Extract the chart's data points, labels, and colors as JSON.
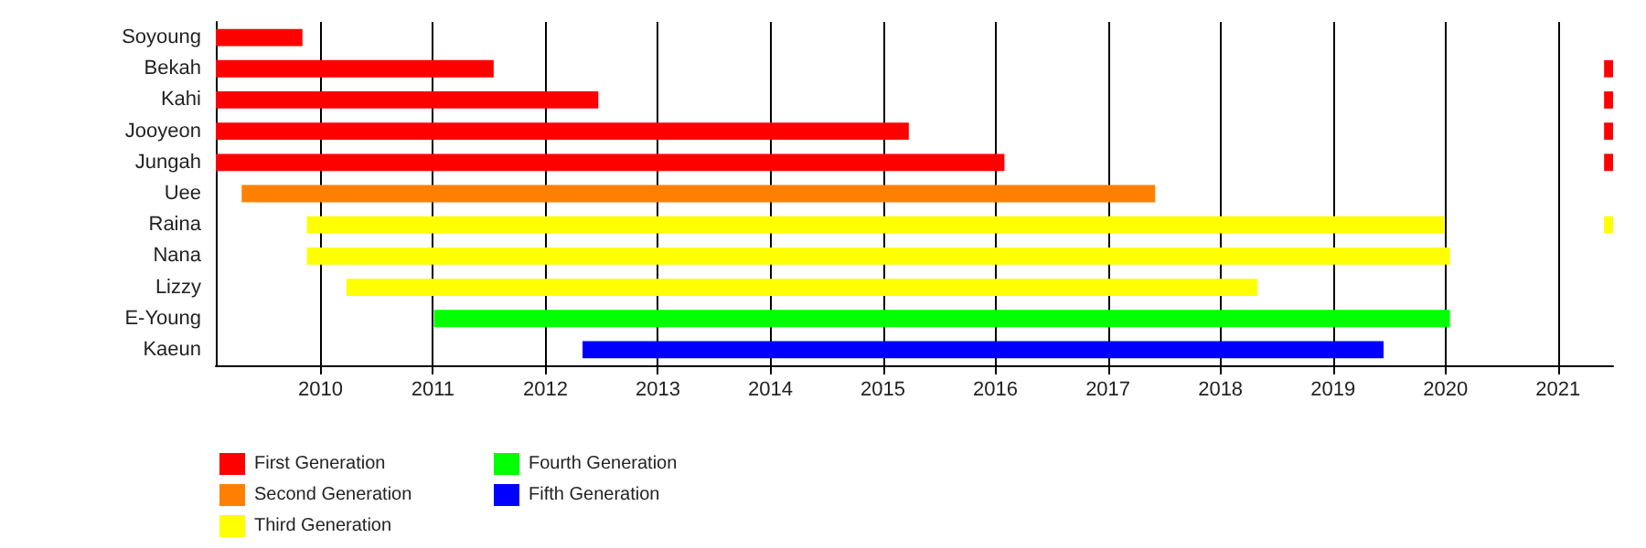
{
  "chart_data": {
    "type": "bar",
    "orientation": "horizontal",
    "categories": [
      "Soyoung",
      "Bekah",
      "Kahi",
      "Jooyeon",
      "Jungah",
      "Uee",
      "Raina",
      "Nana",
      "Lizzy",
      "E-Young",
      "Kaeun"
    ],
    "series": [
      {
        "name": "First Generation",
        "color": "#ff0000",
        "base": [
          2009.07,
          2009.07,
          2009.07,
          2009.07,
          2009.07,
          null,
          null,
          null,
          null,
          null,
          null
        ],
        "values": [
          0.77,
          2.47,
          3.4,
          6.16,
          7.01,
          null,
          null,
          null,
          null,
          null,
          null
        ]
      },
      {
        "name": "Second Generation",
        "color": "#ff8000",
        "base": [
          null,
          null,
          null,
          null,
          null,
          2009.3,
          null,
          null,
          null,
          null,
          null
        ],
        "values": [
          null,
          null,
          null,
          null,
          null,
          8.12,
          null,
          null,
          null,
          null,
          null
        ]
      },
      {
        "name": "Third Generation",
        "color": "#ffff00",
        "base": [
          null,
          null,
          null,
          null,
          null,
          null,
          2009.88,
          2009.88,
          2010.23,
          null,
          null
        ],
        "values": [
          null,
          null,
          null,
          null,
          null,
          null,
          10.11,
          10.16,
          8.1,
          null,
          null
        ]
      },
      {
        "name": "Fourth Generation",
        "color": "#00ff00",
        "base": [
          null,
          null,
          null,
          null,
          null,
          null,
          null,
          null,
          null,
          2011.01,
          null
        ],
        "values": [
          null,
          null,
          null,
          null,
          null,
          null,
          null,
          null,
          null,
          9.03,
          null
        ]
      },
      {
        "name": "Fifth Generation",
        "color": "#0000ff",
        "base": [
          null,
          null,
          null,
          null,
          null,
          null,
          null,
          null,
          null,
          null,
          2012.33
        ],
        "values": [
          null,
          null,
          null,
          null,
          null,
          null,
          null,
          null,
          null,
          null,
          7.12
        ]
      },
      {
        "color": "#ff0000",
        "base": [
          null,
          2021.41,
          2021.41,
          2021.41,
          2021.41,
          null,
          null,
          null,
          null,
          null,
          null
        ],
        "values": [
          null,
          0.08,
          0.08,
          0.08,
          0.08,
          null,
          null,
          null,
          null,
          null,
          null
        ]
      },
      {
        "color": "#ffff00",
        "base": [
          null,
          null,
          null,
          null,
          null,
          null,
          2021.41,
          null,
          null,
          null,
          null
        ],
        "values": [
          null,
          null,
          null,
          null,
          null,
          null,
          0.08,
          null,
          null,
          null,
          null
        ]
      }
    ],
    "xlim": [
      2009.07,
      2021.49
    ],
    "xticks": [
      2010,
      2011,
      2012,
      2013,
      2014,
      2015,
      2016,
      2017,
      2018,
      2019,
      2020,
      2021
    ],
    "grid": "x",
    "legend": "bottom left"
  }
}
